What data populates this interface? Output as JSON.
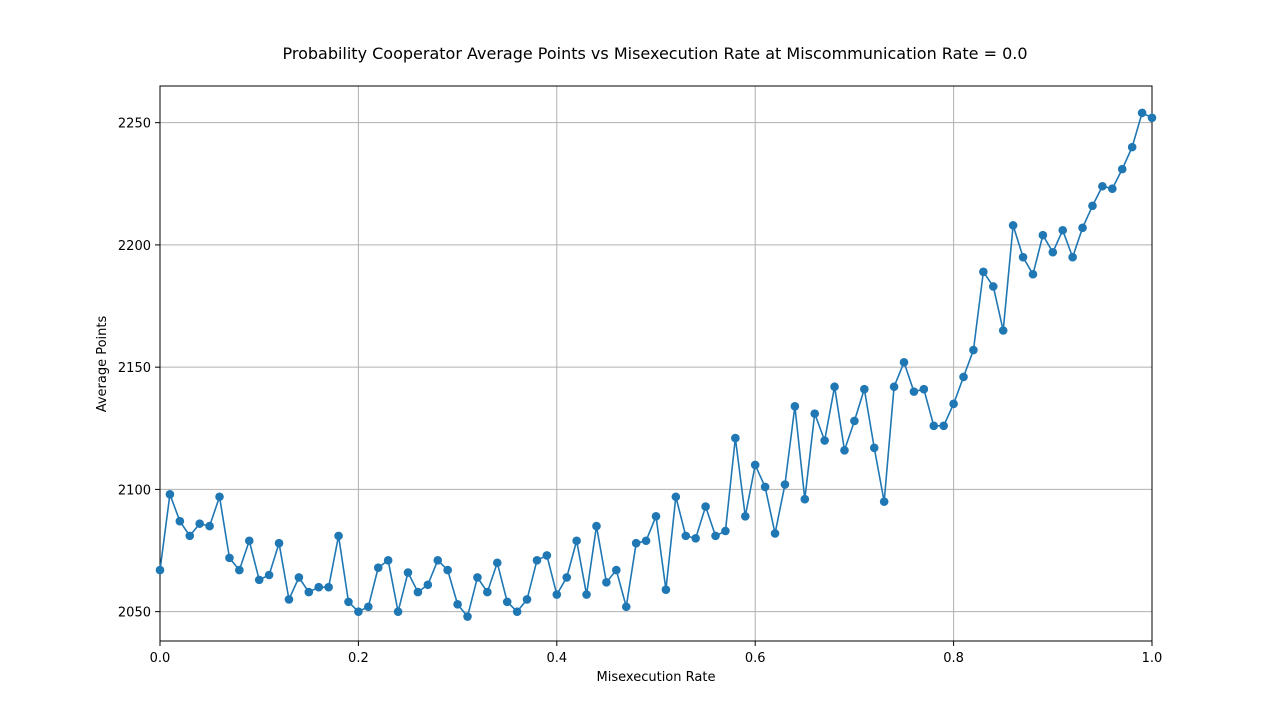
{
  "chart_data": {
    "type": "line",
    "title": "Probability Cooperator Average Points vs Misexecution Rate at Miscommunication Rate = 0.0",
    "xlabel": "Misexecution Rate",
    "ylabel": "Average Points",
    "xlim": [
      0.0,
      1.0
    ],
    "ylim": [
      2038,
      2265
    ],
    "grid": true,
    "color": "#1f77b4",
    "xticks": [
      0.0,
      0.2,
      0.4,
      0.6,
      0.8,
      1.0
    ],
    "xtick_labels": [
      "0.0",
      "0.2",
      "0.4",
      "0.6",
      "0.8",
      "1.0"
    ],
    "yticks": [
      2050,
      2100,
      2150,
      2200,
      2250
    ],
    "ytick_labels": [
      "2050",
      "2100",
      "2150",
      "2200",
      "2250"
    ],
    "x": [
      0.0,
      0.01,
      0.02,
      0.03,
      0.04,
      0.05,
      0.06,
      0.07,
      0.08,
      0.09,
      0.1,
      0.11,
      0.12,
      0.13,
      0.14,
      0.15,
      0.16,
      0.17,
      0.18,
      0.19,
      0.2,
      0.21,
      0.22,
      0.23,
      0.24,
      0.25,
      0.26,
      0.27,
      0.28,
      0.29,
      0.3,
      0.31,
      0.32,
      0.33,
      0.34,
      0.35,
      0.36,
      0.37,
      0.38,
      0.39,
      0.4,
      0.41,
      0.42,
      0.43,
      0.44,
      0.45,
      0.46,
      0.47,
      0.48,
      0.49,
      0.5,
      0.51,
      0.52,
      0.53,
      0.54,
      0.55,
      0.56,
      0.57,
      0.58,
      0.59,
      0.6,
      0.61,
      0.62,
      0.63,
      0.64,
      0.65,
      0.66,
      0.67,
      0.68,
      0.69,
      0.7,
      0.71,
      0.72,
      0.73,
      0.74,
      0.75,
      0.76,
      0.77,
      0.78,
      0.79,
      0.8,
      0.81,
      0.82,
      0.83,
      0.84,
      0.85,
      0.86,
      0.87,
      0.88,
      0.89,
      0.9,
      0.91,
      0.92,
      0.93,
      0.94,
      0.95,
      0.96,
      0.97,
      0.98,
      0.99,
      1.0
    ],
    "y": [
      2067,
      2098,
      2087,
      2081,
      2086,
      2085,
      2097,
      2072,
      2067,
      2079,
      2063,
      2065,
      2078,
      2055,
      2064,
      2058,
      2060,
      2060,
      2081,
      2054,
      2050,
      2052,
      2068,
      2071,
      2050,
      2066,
      2058,
      2061,
      2071,
      2067,
      2053,
      2048,
      2064,
      2058,
      2070,
      2054,
      2050,
      2055,
      2071,
      2073,
      2057,
      2064,
      2079,
      2057,
      2085,
      2062,
      2067,
      2052,
      2078,
      2079,
      2089,
      2059,
      2097,
      2081,
      2080,
      2093,
      2081,
      2083,
      2121,
      2089,
      2110,
      2101,
      2082,
      2102,
      2134,
      2096,
      2131,
      2120,
      2142,
      2116,
      2128,
      2141,
      2117,
      2095,
      2142,
      2152,
      2140,
      2141,
      2126,
      2126,
      2135,
      2146,
      2157,
      2189,
      2183,
      2165,
      2208,
      2195,
      2188,
      2204,
      2197,
      2206,
      2195,
      2207,
      2216,
      2224,
      2223,
      2231,
      2240,
      2254,
      2252
    ]
  }
}
